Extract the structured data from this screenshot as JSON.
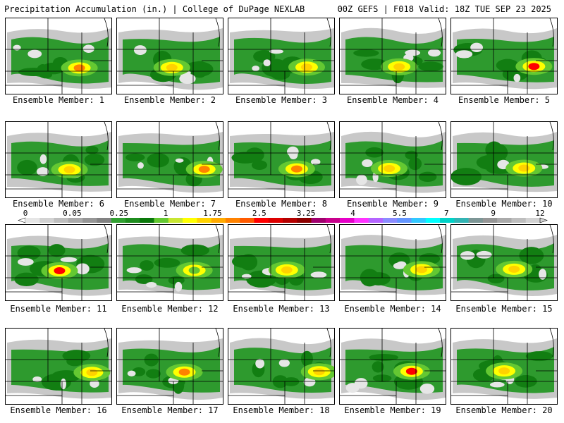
{
  "header": {
    "left_title": "Precipitation Accumulation (in.) | College of DuPage NEXLAB",
    "right_title": "00Z GEFS | F018 Valid: 18Z TUE SEP 23 2025"
  },
  "panel_label_prefix": "Ensemble Member: ",
  "colors": {
    "background": "#ffffff",
    "border": "#000000",
    "scale": [
      "#e6e6e6",
      "#d2d2d2",
      "#bebebe",
      "#aaaaaa",
      "#969696",
      "#828282",
      "#32a032",
      "#1e8c1e",
      "#0a780a",
      "#64c832",
      "#c8e632",
      "#ffff00",
      "#ffd200",
      "#ffaa00",
      "#ff8200",
      "#ff5a00",
      "#ff0000",
      "#dc0000",
      "#b40000",
      "#8c0000",
      "#a0006e",
      "#c8008c",
      "#e600c8",
      "#ff32ff",
      "#b464ff",
      "#8c8cff",
      "#6496ff",
      "#32c8ff",
      "#00ffff",
      "#00d2c8",
      "#32b4b4",
      "#7d9696",
      "#969696",
      "#aaaaaa",
      "#bebebe",
      "#d2d2d2"
    ]
  },
  "chart_data": {
    "type": "heatmap",
    "title": "Precipitation Accumulation (in.)",
    "source": "College of DuPage NEXLAB",
    "model": "00Z GEFS",
    "forecast_hour": "F018",
    "valid_time": "Valid: 18Z TUE SEP 23 2025",
    "units": "in.",
    "colorbar": {
      "ticks": [
        "0",
        "0.05",
        "0.25",
        "1",
        "1.75",
        "2.5",
        "3.25",
        "4",
        "5.5",
        "7",
        "9",
        "12"
      ],
      "tick_values": [
        0,
        0.05,
        0.25,
        1,
        1.75,
        2.5,
        3.25,
        4,
        5.5,
        7,
        9,
        12
      ]
    },
    "panels": [
      {
        "member": 1,
        "max_category": "2.5"
      },
      {
        "member": 2,
        "max_category": "1.75"
      },
      {
        "member": 3,
        "max_category": "1.75"
      },
      {
        "member": 4,
        "max_category": "1.75"
      },
      {
        "member": 5,
        "max_category": "3.25"
      },
      {
        "member": 6,
        "max_category": "1.75"
      },
      {
        "member": 7,
        "max_category": "2.5"
      },
      {
        "member": 8,
        "max_category": "2.5"
      },
      {
        "member": 9,
        "max_category": "1.75"
      },
      {
        "member": 10,
        "max_category": "1.75"
      },
      {
        "member": 11,
        "max_category": "3.25"
      },
      {
        "member": 12,
        "max_category": "1"
      },
      {
        "member": 13,
        "max_category": "1.75"
      },
      {
        "member": 14,
        "max_category": "1.75"
      },
      {
        "member": 15,
        "max_category": "1.75"
      },
      {
        "member": 16,
        "max_category": "1.75"
      },
      {
        "member": 17,
        "max_category": "2.5"
      },
      {
        "member": 18,
        "max_category": "1.75"
      },
      {
        "member": 19,
        "max_category": "3.25"
      },
      {
        "member": 20,
        "max_category": "1.75"
      }
    ]
  }
}
